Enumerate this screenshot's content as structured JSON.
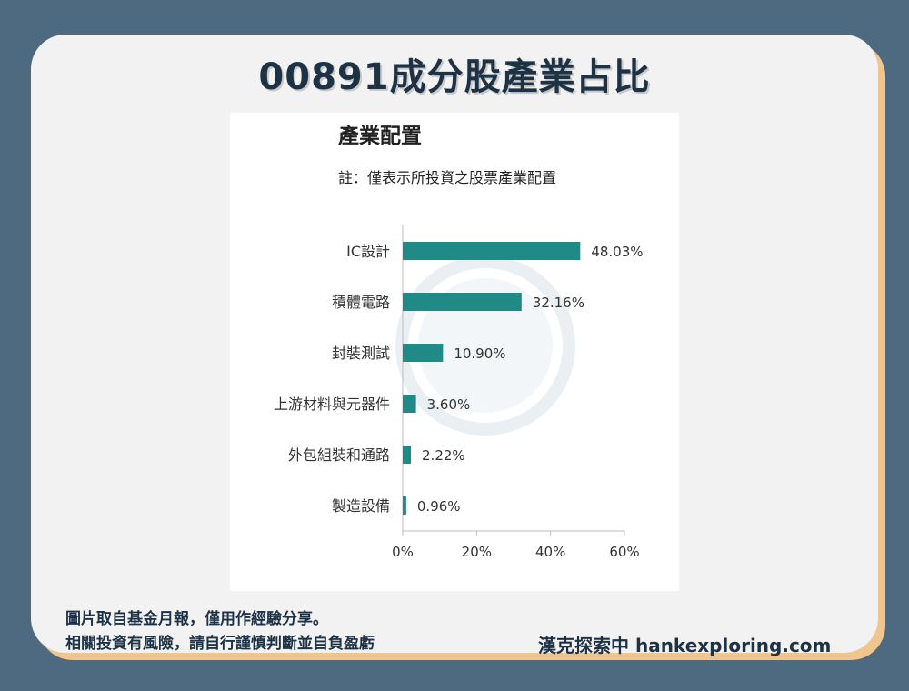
{
  "page_title": "00891成分股產業占比",
  "chart_data": {
    "type": "bar",
    "orientation": "horizontal",
    "title": "產業配置",
    "subtitle": "註：僅表示所投資之股票產業配置",
    "categories": [
      "IC設計",
      "積體電路",
      "封裝測試",
      "上游材料與元器件",
      "外包組裝和通路",
      "製造設備"
    ],
    "values": [
      48.03,
      32.16,
      10.9,
      3.6,
      2.22,
      0.96
    ],
    "value_labels": [
      "48.03%",
      "32.16%",
      "10.90%",
      "3.60%",
      "2.22%",
      "0.96%"
    ],
    "xlim": [
      0,
      60
    ],
    "x_ticks": [
      0,
      20,
      40,
      60
    ],
    "x_tick_labels": [
      "0%",
      "20%",
      "40%",
      "60%"
    ],
    "grid": false,
    "bar_color": "#1f8a86"
  },
  "footnote": {
    "line1": "圖片取自基金月報，僅用作經驗分享。",
    "line2": "相關投資有風險，請自行謹慎判斷並自負盈虧"
  },
  "brand": "漢克探索中 hankexploring.com",
  "colors": {
    "background": "#4e6a80",
    "card": "#f2f2f2",
    "card_shadow": "#f1c58e",
    "title": "#1e3246"
  }
}
